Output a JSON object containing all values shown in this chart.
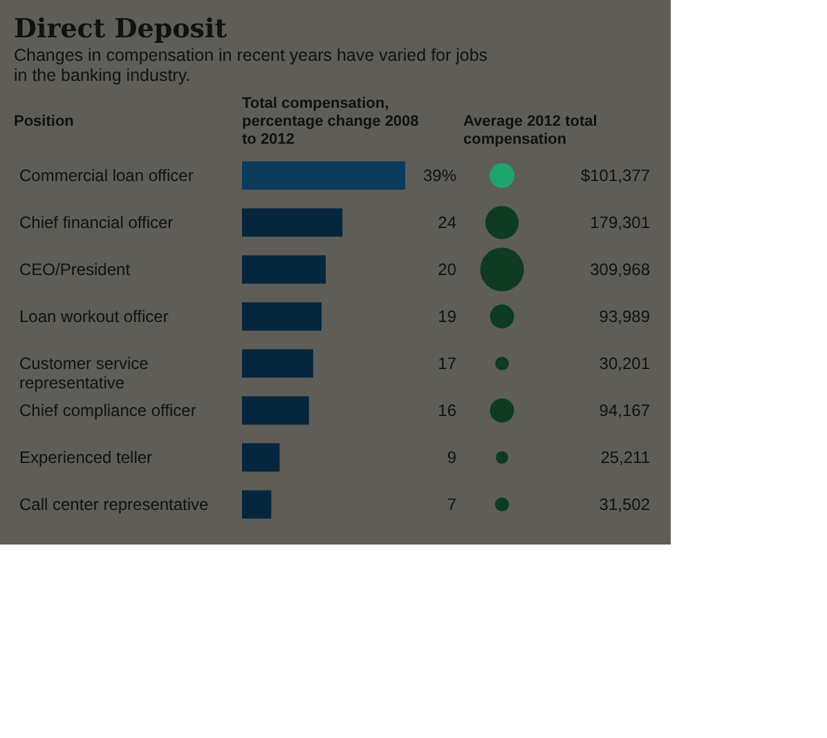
{
  "chart_data": [
    {
      "type": "bar",
      "orientation": "horizontal",
      "title": "Direct Deposit",
      "subtitle": "Changes in compensation in recent years have varied for jobs in the banking industry.",
      "ylabel": "Position",
      "xlabel": "Total compensation, percentage change 2008 to 2012",
      "categories": [
        "Commercial loan officer",
        "Chief financial officer",
        "CEO/President",
        "Loan workout officer",
        "Customer service representative",
        "Chief compliance officer",
        "Experienced teller",
        "Call center representative"
      ],
      "values": [
        39,
        24,
        20,
        19,
        17,
        16,
        9,
        7
      ],
      "value_labels": [
        "39%",
        "24",
        "20",
        "19",
        "17",
        "16",
        "9",
        "7"
      ],
      "colors": [
        "#0b3a5c",
        "#06263d",
        "#06263d",
        "#06263d",
        "#06263d",
        "#06263d",
        "#06263d",
        "#06263d"
      ]
    },
    {
      "type": "other",
      "title": "Average 2012 total compensation",
      "categories": [
        null,
        null,
        null,
        null,
        null,
        null,
        null,
        null
      ],
      "values": [
        101377,
        179301,
        309968,
        93989,
        30201,
        94167,
        25211,
        31502
      ],
      "value_labels": [
        "$101,377",
        "179,301",
        "309,968",
        "93,989",
        "30,201",
        "94,167",
        "25,211",
        "31,502"
      ],
      "colors": [
        "#1fa46c",
        "#0e3b22",
        "#0e3b22",
        "#0e3b22",
        "#0e3b22",
        "#0e3b22",
        "#0e3b22",
        "#0e3b22"
      ]
    }
  ]
}
